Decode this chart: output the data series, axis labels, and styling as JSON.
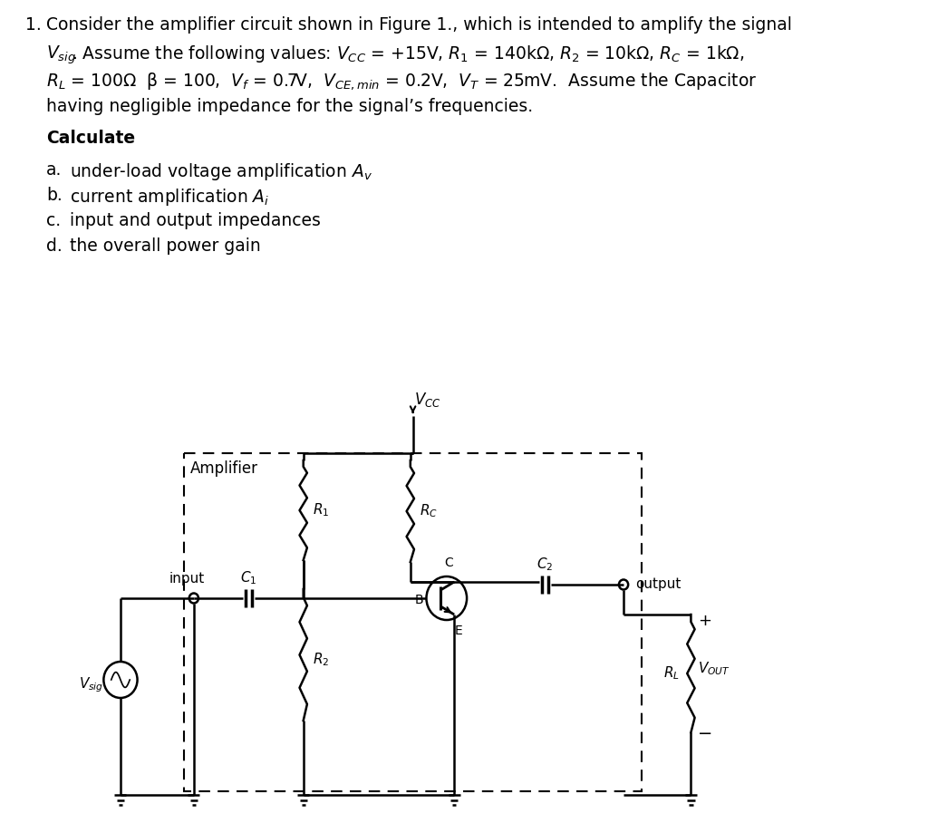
{
  "bg_color": "#ffffff",
  "fig_width": 10.24,
  "fig_height": 9.08,
  "line1": "Consider the amplifier circuit shown in Figure 1., which is intended to amplify the signal",
  "line2": ". Assume the following values: $V_{CC}$ = +15V, $R_1$ = 140kΩ, $R_2$ = 10kΩ, $R_C$ = 1kΩ,",
  "line3": "$R_L$ = 100Ω  β = 100,  $V_f$ = 0.7V,  $V_{CE,min}$ = 0.2V,  $V_T$ = 25mV.  Assume the Capacitor",
  "line4": "having negligible impedance for the signal’s frequencies.",
  "calculate": "Calculate",
  "item_a_pre": "under-load voltage amplification ",
  "item_a_post": "$A_v$",
  "item_b_pre": "current amplification ",
  "item_b_post": "$A_i$",
  "item_c": "input and output impedances",
  "item_d": "the overall power gain",
  "amplifier_label": "Amplifier",
  "input_label": "input",
  "output_label": "output",
  "vcc_label": "$V_{CC}$",
  "vsig_label": "$V_{sig}$",
  "vout_label": "$V_{OUT}$"
}
